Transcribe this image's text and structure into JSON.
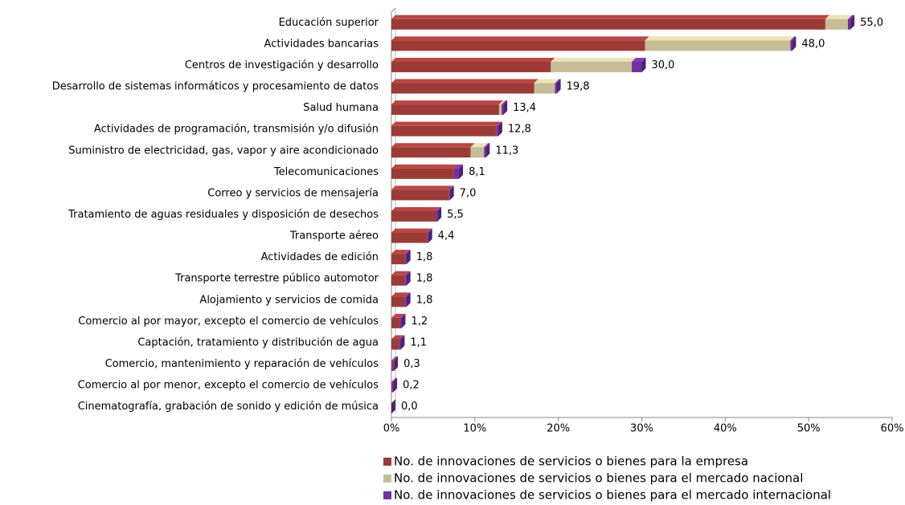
{
  "chart_data": {
    "type": "stacked-bar-horizontal",
    "categories": [
      "Educación superior",
      "Actividades bancarias",
      "Centros de investigación y desarrollo",
      "Desarrollo de sistemas informáticos y procesamiento de datos",
      "Salud humana",
      "Actividades de programación, transmisión y/o difusión",
      "Suministro de electricidad, gas, vapor y aire acondicionado",
      "Telecomunicaciones",
      "Correo y servicios de mensajería",
      "Tratamiento de aguas residuales y disposición de desechos",
      "Transporte aéreo",
      "Actividades de edición",
      "Transporte terrestre público automotor",
      "Alojamiento y servicios de comida",
      "Comercio al por mayor, excepto el comercio de vehículos",
      "Captación, tratamiento y distribución de agua",
      "Comercio, mantenimiento y reparación de vehículos",
      "Comercio al por menor, excepto el comercio de vehículos",
      "Cinematografía, grabación de sonido y edición de música"
    ],
    "series": [
      {
        "name": "No. de innovaciones de servicios o bienes para la empresa",
        "color": "#9b3b38",
        "values": [
          52.0,
          30.4,
          19.1,
          17.1,
          12.9,
          12.6,
          9.5,
          7.5,
          6.9,
          5.3,
          4.3,
          1.6,
          1.6,
          1.6,
          1.0,
          0.9,
          0.2,
          0.1,
          0
        ]
      },
      {
        "name": "No. de innovaciones  de servicios o bienes para el mercado nacional",
        "color": "#c4bd97",
        "values": [
          2.7,
          17.4,
          9.7,
          2.5,
          0.3,
          0,
          1.6,
          0,
          0,
          0,
          0,
          0,
          0,
          0,
          0,
          0,
          0,
          0,
          0
        ]
      },
      {
        "name": "No. de innovaciones  de servicios o bienes para el mercado internacional",
        "color": "#7030a0",
        "values": [
          0.3,
          0.2,
          1.2,
          0.2,
          0.2,
          0.2,
          0.2,
          0.6,
          0.1,
          0.2,
          0.1,
          0.2,
          0.2,
          0.2,
          0.2,
          0.2,
          0.1,
          0.1,
          0
        ]
      }
    ],
    "totals": [
      55.0,
      48.0,
      30.0,
      19.8,
      13.4,
      12.8,
      11.3,
      8.1,
      7.0,
      5.5,
      4.4,
      1.8,
      1.8,
      1.8,
      1.2,
      1.1,
      0.3,
      0.2,
      0.0
    ],
    "total_labels": [
      "55,0",
      "48,0",
      "30,0",
      "19,8",
      "13,4",
      "12,8",
      "11,3",
      "8,1",
      "7,0",
      "5,5",
      "4,4",
      "1,8",
      "1,8",
      "1,8",
      "1,2",
      "1,1",
      "0,3",
      "0,2",
      "0,0"
    ],
    "xlim": [
      0,
      60
    ],
    "xticks": [
      {
        "value": 0,
        "label": "0%"
      },
      {
        "value": 10,
        "label": "10%"
      },
      {
        "value": 20,
        "label": "20%"
      },
      {
        "value": 30,
        "label": "30%"
      },
      {
        "value": 40,
        "label": "40%"
      },
      {
        "value": 50,
        "label": "50%"
      },
      {
        "value": 60,
        "label": "60%"
      }
    ],
    "legend": "bottom"
  }
}
